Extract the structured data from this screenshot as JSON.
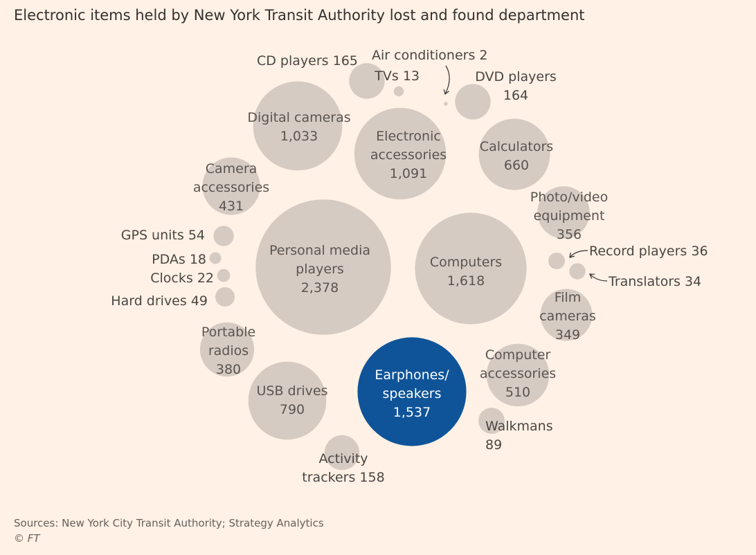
{
  "title": "Electronic items held by New York Transit Authority lost and found department",
  "footer": {
    "source": "Sources: New York City Transit Authority; Strategy Analytics",
    "copyright": "© FT"
  },
  "colors": {
    "background": "#fff1e5",
    "bubble": "#d6cbc3",
    "highlight": "#0f5499",
    "label_on_bubble": "#5a5450",
    "label_outside": "#4a4643",
    "label_on_highlight": "#ffffff",
    "arrow": "#33302e"
  },
  "chart_data": {
    "type": "bubble",
    "title": "Electronic items held by New York Transit Authority lost and found department",
    "highlighted": "Earphones/ speakers",
    "items": [
      {
        "name": "Personal media players",
        "value": 2378
      },
      {
        "name": "Computers",
        "value": 1618
      },
      {
        "name": "Earphones/ speakers",
        "value": 1537
      },
      {
        "name": "Electronic accessories",
        "value": 1091
      },
      {
        "name": "Digital cameras",
        "value": 1033
      },
      {
        "name": "USB drives",
        "value": 790
      },
      {
        "name": "Calculators",
        "value": 660
      },
      {
        "name": "Computer accessories",
        "value": 510
      },
      {
        "name": "Camera accessories",
        "value": 431
      },
      {
        "name": "Portable radios",
        "value": 380
      },
      {
        "name": "Photo/video equipment",
        "value": 356
      },
      {
        "name": "Film cameras",
        "value": 349
      },
      {
        "name": "CD players",
        "value": 165
      },
      {
        "name": "DVD players",
        "value": 164
      },
      {
        "name": "Activity trackers",
        "value": 158
      },
      {
        "name": "Walkmans",
        "value": 89
      },
      {
        "name": "GPS units",
        "value": 54
      },
      {
        "name": "Hard drives",
        "value": 49
      },
      {
        "name": "Record players",
        "value": 36
      },
      {
        "name": "Translators",
        "value": 34
      },
      {
        "name": "Clocks",
        "value": 22
      },
      {
        "name": "PDAs",
        "value": 18
      },
      {
        "name": "TVs",
        "value": 13
      },
      {
        "name": "Air conditioners",
        "value": 2
      }
    ],
    "labels": [
      {
        "item": "Personal media players",
        "lines": [
          "Personal media",
          "players",
          "2,378"
        ]
      },
      {
        "item": "Computers",
        "lines": [
          "Computers",
          "1,618"
        ]
      },
      {
        "item": "Earphones/ speakers",
        "lines": [
          "Earphones/",
          "speakers",
          "1,537"
        ]
      },
      {
        "item": "Electronic accessories",
        "lines": [
          "Electronic",
          "accessories",
          "1,091"
        ]
      },
      {
        "item": "Digital cameras",
        "lines": [
          "Digital cameras",
          "1,033"
        ]
      },
      {
        "item": "USB drives",
        "lines": [
          "USB drives",
          "790"
        ]
      },
      {
        "item": "Calculators",
        "lines": [
          "Calculators",
          "660"
        ]
      },
      {
        "item": "Computer accessories",
        "lines": [
          "Computer",
          "accessories",
          "510"
        ]
      },
      {
        "item": "Camera accessories",
        "lines": [
          "Camera",
          "accessories",
          "431"
        ]
      },
      {
        "item": "Portable radios",
        "lines": [
          "Portable",
          "radios",
          "380"
        ]
      },
      {
        "item": "Photo/video equipment",
        "lines": [
          "Photo/video",
          "equipment",
          "356"
        ]
      },
      {
        "item": "Film cameras",
        "lines": [
          "Film",
          "cameras",
          "349"
        ]
      },
      {
        "item": "CD players",
        "lines": [
          "CD players 165"
        ]
      },
      {
        "item": "DVD players",
        "lines": [
          "DVD players",
          "164"
        ]
      },
      {
        "item": "Activity trackers",
        "lines": [
          "Activity",
          "trackers 158"
        ]
      },
      {
        "item": "Walkmans",
        "lines": [
          "Walkmans",
          "89"
        ]
      },
      {
        "item": "GPS units",
        "lines": [
          "GPS units 54"
        ]
      },
      {
        "item": "Hard drives",
        "lines": [
          "Hard drives 49"
        ]
      },
      {
        "item": "Record players",
        "lines": [
          "Record players 36"
        ]
      },
      {
        "item": "Translators",
        "lines": [
          "Translators 34"
        ]
      },
      {
        "item": "Clocks",
        "lines": [
          "Clocks 22"
        ]
      },
      {
        "item": "PDAs",
        "lines": [
          "PDAs 18"
        ]
      },
      {
        "item": "TVs",
        "lines": [
          "TVs 13"
        ]
      },
      {
        "item": "Air conditioners",
        "lines": [
          "Air conditioners 2"
        ]
      }
    ]
  }
}
